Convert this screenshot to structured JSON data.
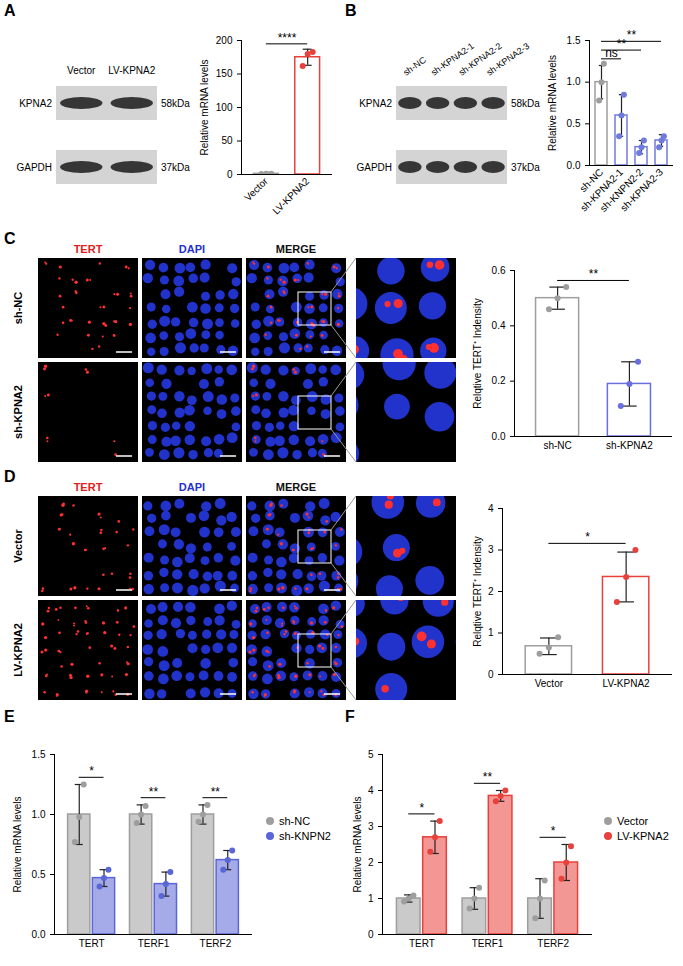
{
  "panels": [
    {
      "letter": "A",
      "blot": {
        "lanes": [
          "Vector",
          "LV-KPNA2"
        ],
        "bands": [
          {
            "name": "KPNA2",
            "size": "58kDa"
          },
          {
            "name": "GAPDH",
            "size": "37kDa"
          }
        ]
      }
    },
    {
      "letter": "B",
      "blot": {
        "lanes": [
          "sh-NC",
          "sh-KPNA2-1",
          "sh-KPNA2-2",
          "sh-KPNA2-3"
        ],
        "bands": [
          {
            "name": "KPNA2",
            "size": "58kDa"
          },
          {
            "name": "GAPDH",
            "size": "37kDa"
          }
        ]
      }
    },
    {
      "letter": "C",
      "images": {
        "columns": [
          "TERT",
          "DAPI",
          "MERGE"
        ],
        "rows": [
          "sh-NC",
          "sh-KPNA2"
        ]
      }
    },
    {
      "letter": "D",
      "images": {
        "columns": [
          "TERT",
          "DAPI",
          "MERGE"
        ],
        "rows": [
          "Vector",
          "LV-KPNA2"
        ]
      }
    },
    {
      "letter": "E"
    },
    {
      "letter": "F"
    }
  ],
  "chart_data": [
    {
      "type": "bar",
      "categories": [
        "Vector",
        "LV-KPNA2"
      ],
      "values": [
        1,
        175
      ],
      "error": [
        0.5,
        12
      ],
      "points": [
        [
          0.8,
          1.0,
          1.2
        ],
        [
          162,
          180,
          183
        ]
      ],
      "colors": [
        "#9e9e9e",
        "#e8413c"
      ],
      "y_label": "Relative mRNA levels",
      "ylim": [
        0,
        200
      ],
      "yticks": [
        0,
        50,
        100,
        150,
        200
      ],
      "annotations": [
        {
          "text": "****",
          "between": [
            "Vector",
            "LV-KPNA2"
          ]
        }
      ]
    },
    {
      "type": "bar",
      "categories": [
        "sh-NC",
        "sh-KPNA2-1",
        "sh-KNPN2-2",
        "sh-KPNA2-3"
      ],
      "values": [
        1.0,
        0.6,
        0.22,
        0.3
      ],
      "error": [
        0.2,
        0.25,
        0.08,
        0.07
      ],
      "points": [
        [
          0.78,
          1.0,
          1.22
        ],
        [
          0.35,
          0.6,
          0.85
        ],
        [
          0.15,
          0.22,
          0.3
        ],
        [
          0.22,
          0.3,
          0.35
        ]
      ],
      "colors": [
        "#9e9e9e",
        "#6f7bdc",
        "#6f7bdc",
        "#6f7bdc"
      ],
      "y_label": "Relative mRNA levels",
      "ylim": [
        0,
        1.5
      ],
      "yticks": [
        {
          "value": 0,
          "label": "0.0"
        },
        {
          "value": 0.5,
          "label": "0.5"
        },
        {
          "value": 1,
          "label": "1.0"
        },
        {
          "value": 1.5,
          "label": "1.5"
        }
      ],
      "annotations": [
        {
          "text": "ns",
          "between": [
            "sh-NC",
            "sh-KPNA2-1"
          ]
        },
        {
          "text": "**",
          "between": [
            "sh-NC",
            "sh-KNPN2-2"
          ]
        },
        {
          "text": "**",
          "between": [
            "sh-NC",
            "sh-KPNA2-3"
          ]
        }
      ]
    },
    {
      "type": "bar",
      "categories": [
        "sh-NC",
        "sh-KPNA2"
      ],
      "values": [
        0.5,
        0.19
      ],
      "error": [
        0.04,
        0.08
      ],
      "points": [
        [
          0.46,
          0.5,
          0.54
        ],
        [
          0.11,
          0.19,
          0.27
        ]
      ],
      "colors": [
        "#9e9e9e",
        "#6a6fe0"
      ],
      "y_label": "Relqtive TERT⁺ Indensity",
      "ylim": [
        0,
        0.6
      ],
      "yticks": [
        {
          "value": 0,
          "label": "0.0"
        },
        {
          "value": 0.2,
          "label": "0.2"
        },
        {
          "value": 0.4,
          "label": "0.4"
        },
        {
          "value": 0.6,
          "label": "0.6"
        }
      ],
      "annotations": [
        {
          "text": "**",
          "between": [
            "sh-NC",
            "sh-KPNA2"
          ]
        }
      ]
    },
    {
      "type": "bar",
      "categories": [
        "Vector",
        "LV-KPNA2"
      ],
      "values": [
        0.68,
        2.35
      ],
      "error": [
        0.2,
        0.6
      ],
      "points": [
        [
          0.5,
          0.65,
          0.9
        ],
        [
          1.75,
          2.35,
          3.0
        ]
      ],
      "colors": [
        "#9e9e9e",
        "#e8413c"
      ],
      "y_label": "Relqtive TERT⁺ Indensity",
      "ylim": [
        0,
        4
      ],
      "yticks": [
        0,
        1,
        2,
        3,
        4
      ],
      "annotations": [
        {
          "text": "*",
          "between": [
            "Vector",
            "LV-KPNA2"
          ]
        }
      ]
    },
    {
      "type": "bar",
      "categories": [
        "TERT",
        "TERF1",
        "TERF2"
      ],
      "series": [
        {
          "name": "sh-NC",
          "color": "#9e9e9e",
          "values": [
            1.0,
            1.0,
            1.0
          ],
          "error": [
            0.25,
            0.08,
            0.08
          ],
          "points": [
            [
              0.77,
              0.98,
              1.25
            ],
            [
              0.93,
              1.0,
              1.07
            ],
            [
              0.94,
              1.0,
              1.08
            ]
          ]
        },
        {
          "name": "sh-KNPN2",
          "color": "#5a66d6",
          "values": [
            0.47,
            0.42,
            0.62
          ],
          "error": [
            0.07,
            0.1,
            0.08
          ],
          "points": [
            [
              0.4,
              0.47,
              0.54
            ],
            [
              0.32,
              0.42,
              0.52
            ],
            [
              0.54,
              0.62,
              0.7
            ]
          ]
        }
      ],
      "legend": "right",
      "y_label": "Relative mRNA levels",
      "ylim": [
        0,
        1.5
      ],
      "yticks": [
        {
          "value": 0,
          "label": "0.0"
        },
        {
          "value": 0.5,
          "label": "0.5"
        },
        {
          "value": 1,
          "label": "1.0"
        },
        {
          "value": 1.5,
          "label": "1.5"
        }
      ],
      "annotations": [
        {
          "text": "*",
          "category": "TERT"
        },
        {
          "text": "**",
          "category": "TERF1"
        },
        {
          "text": "**",
          "category": "TERF2"
        }
      ]
    },
    {
      "type": "bar",
      "categories": [
        "TERT",
        "TERF1",
        "TERF2"
      ],
      "series": [
        {
          "name": "Vector",
          "color": "#9e9e9e",
          "values": [
            1.0,
            1.0,
            1.0
          ],
          "error": [
            0.1,
            0.3,
            0.55
          ],
          "points": [
            [
              0.92,
              1.0,
              1.08
            ],
            [
              0.72,
              1.0,
              1.3
            ],
            [
              0.45,
              1.0,
              1.5
            ]
          ]
        },
        {
          "name": "LV-KPNA2",
          "color": "#e8413c",
          "values": [
            2.7,
            3.85,
            2.0
          ],
          "error": [
            0.45,
            0.15,
            0.5
          ],
          "points": [
            [
              2.3,
              2.7,
              3.15
            ],
            [
              3.7,
              3.85,
              4.0
            ],
            [
              1.55,
              2.0,
              2.45
            ]
          ]
        }
      ],
      "legend": "right",
      "y_label": "Relative mRNA levels",
      "ylim": [
        0,
        5
      ],
      "yticks": [
        0,
        1,
        2,
        3,
        4,
        5
      ],
      "annotations": [
        {
          "text": "*",
          "category": "TERT"
        },
        {
          "text": "**",
          "category": "TERF1"
        },
        {
          "text": "*",
          "category": "TERF2"
        }
      ]
    }
  ]
}
